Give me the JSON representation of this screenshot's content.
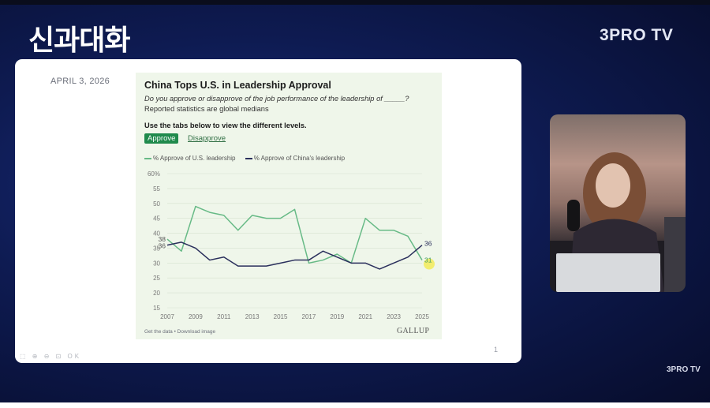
{
  "show": {
    "title": "신과대화",
    "brand_top": "3PRO TV",
    "brand_bottom": "3PRO TV"
  },
  "slide": {
    "date": "APRIL 3, 2026",
    "page_number": "1",
    "controls": "⬚ ⊕ ⊖ ⊡ OK"
  },
  "card": {
    "title": "China Tops U.S. in Leadership Approval",
    "question": "Do you approve or disapprove of the job performance of the leadership of _____?",
    "note": "Reported statistics are global medians",
    "instruction": "Use the tabs below to view the different levels.",
    "tabs": [
      {
        "label": "Approve",
        "active": true
      },
      {
        "label": "Disapprove",
        "active": false
      }
    ],
    "footer": "Get the data • Download image",
    "logo": "GALLUP"
  },
  "colors": {
    "us_series": "#67ba86",
    "china_series": "#2a2f5c",
    "active_tab": "#1f8a4c",
    "highlight": "#f4ea3a"
  },
  "chart_data": {
    "type": "line",
    "title": "China Tops U.S. in Leadership Approval",
    "x": [
      2007,
      2008,
      2009,
      2010,
      2011,
      2012,
      2013,
      2014,
      2015,
      2016,
      2017,
      2018,
      2019,
      2020,
      2021,
      2022,
      2023,
      2024,
      2025
    ],
    "x_tick_labels": [
      "2007",
      "2009",
      "2011",
      "2013",
      "2015",
      "2017",
      "2019",
      "2021",
      "2023",
      "2025"
    ],
    "y_tick_labels": [
      "15",
      "20",
      "25",
      "30",
      "35",
      "40",
      "45",
      "50",
      "55",
      "60%"
    ],
    "ylim": [
      15,
      60
    ],
    "series": [
      {
        "name": "% Approve of U.S. leadership",
        "color": "#67ba86",
        "values": [
          38,
          34,
          49,
          47,
          46,
          41,
          46,
          45,
          45,
          48,
          30,
          31,
          33,
          30,
          45,
          41,
          41,
          39,
          31
        ],
        "start_label": "38",
        "end_label": "31"
      },
      {
        "name": "% Approve of China's leadership",
        "color": "#2a2f5c",
        "values": [
          36,
          37,
          35,
          31,
          32,
          29,
          29,
          29,
          30,
          31,
          31,
          34,
          32,
          30,
          30,
          28,
          30,
          32,
          36
        ],
        "start_label": "36",
        "end_label": "36"
      }
    ],
    "legend_placement": "top-left"
  }
}
